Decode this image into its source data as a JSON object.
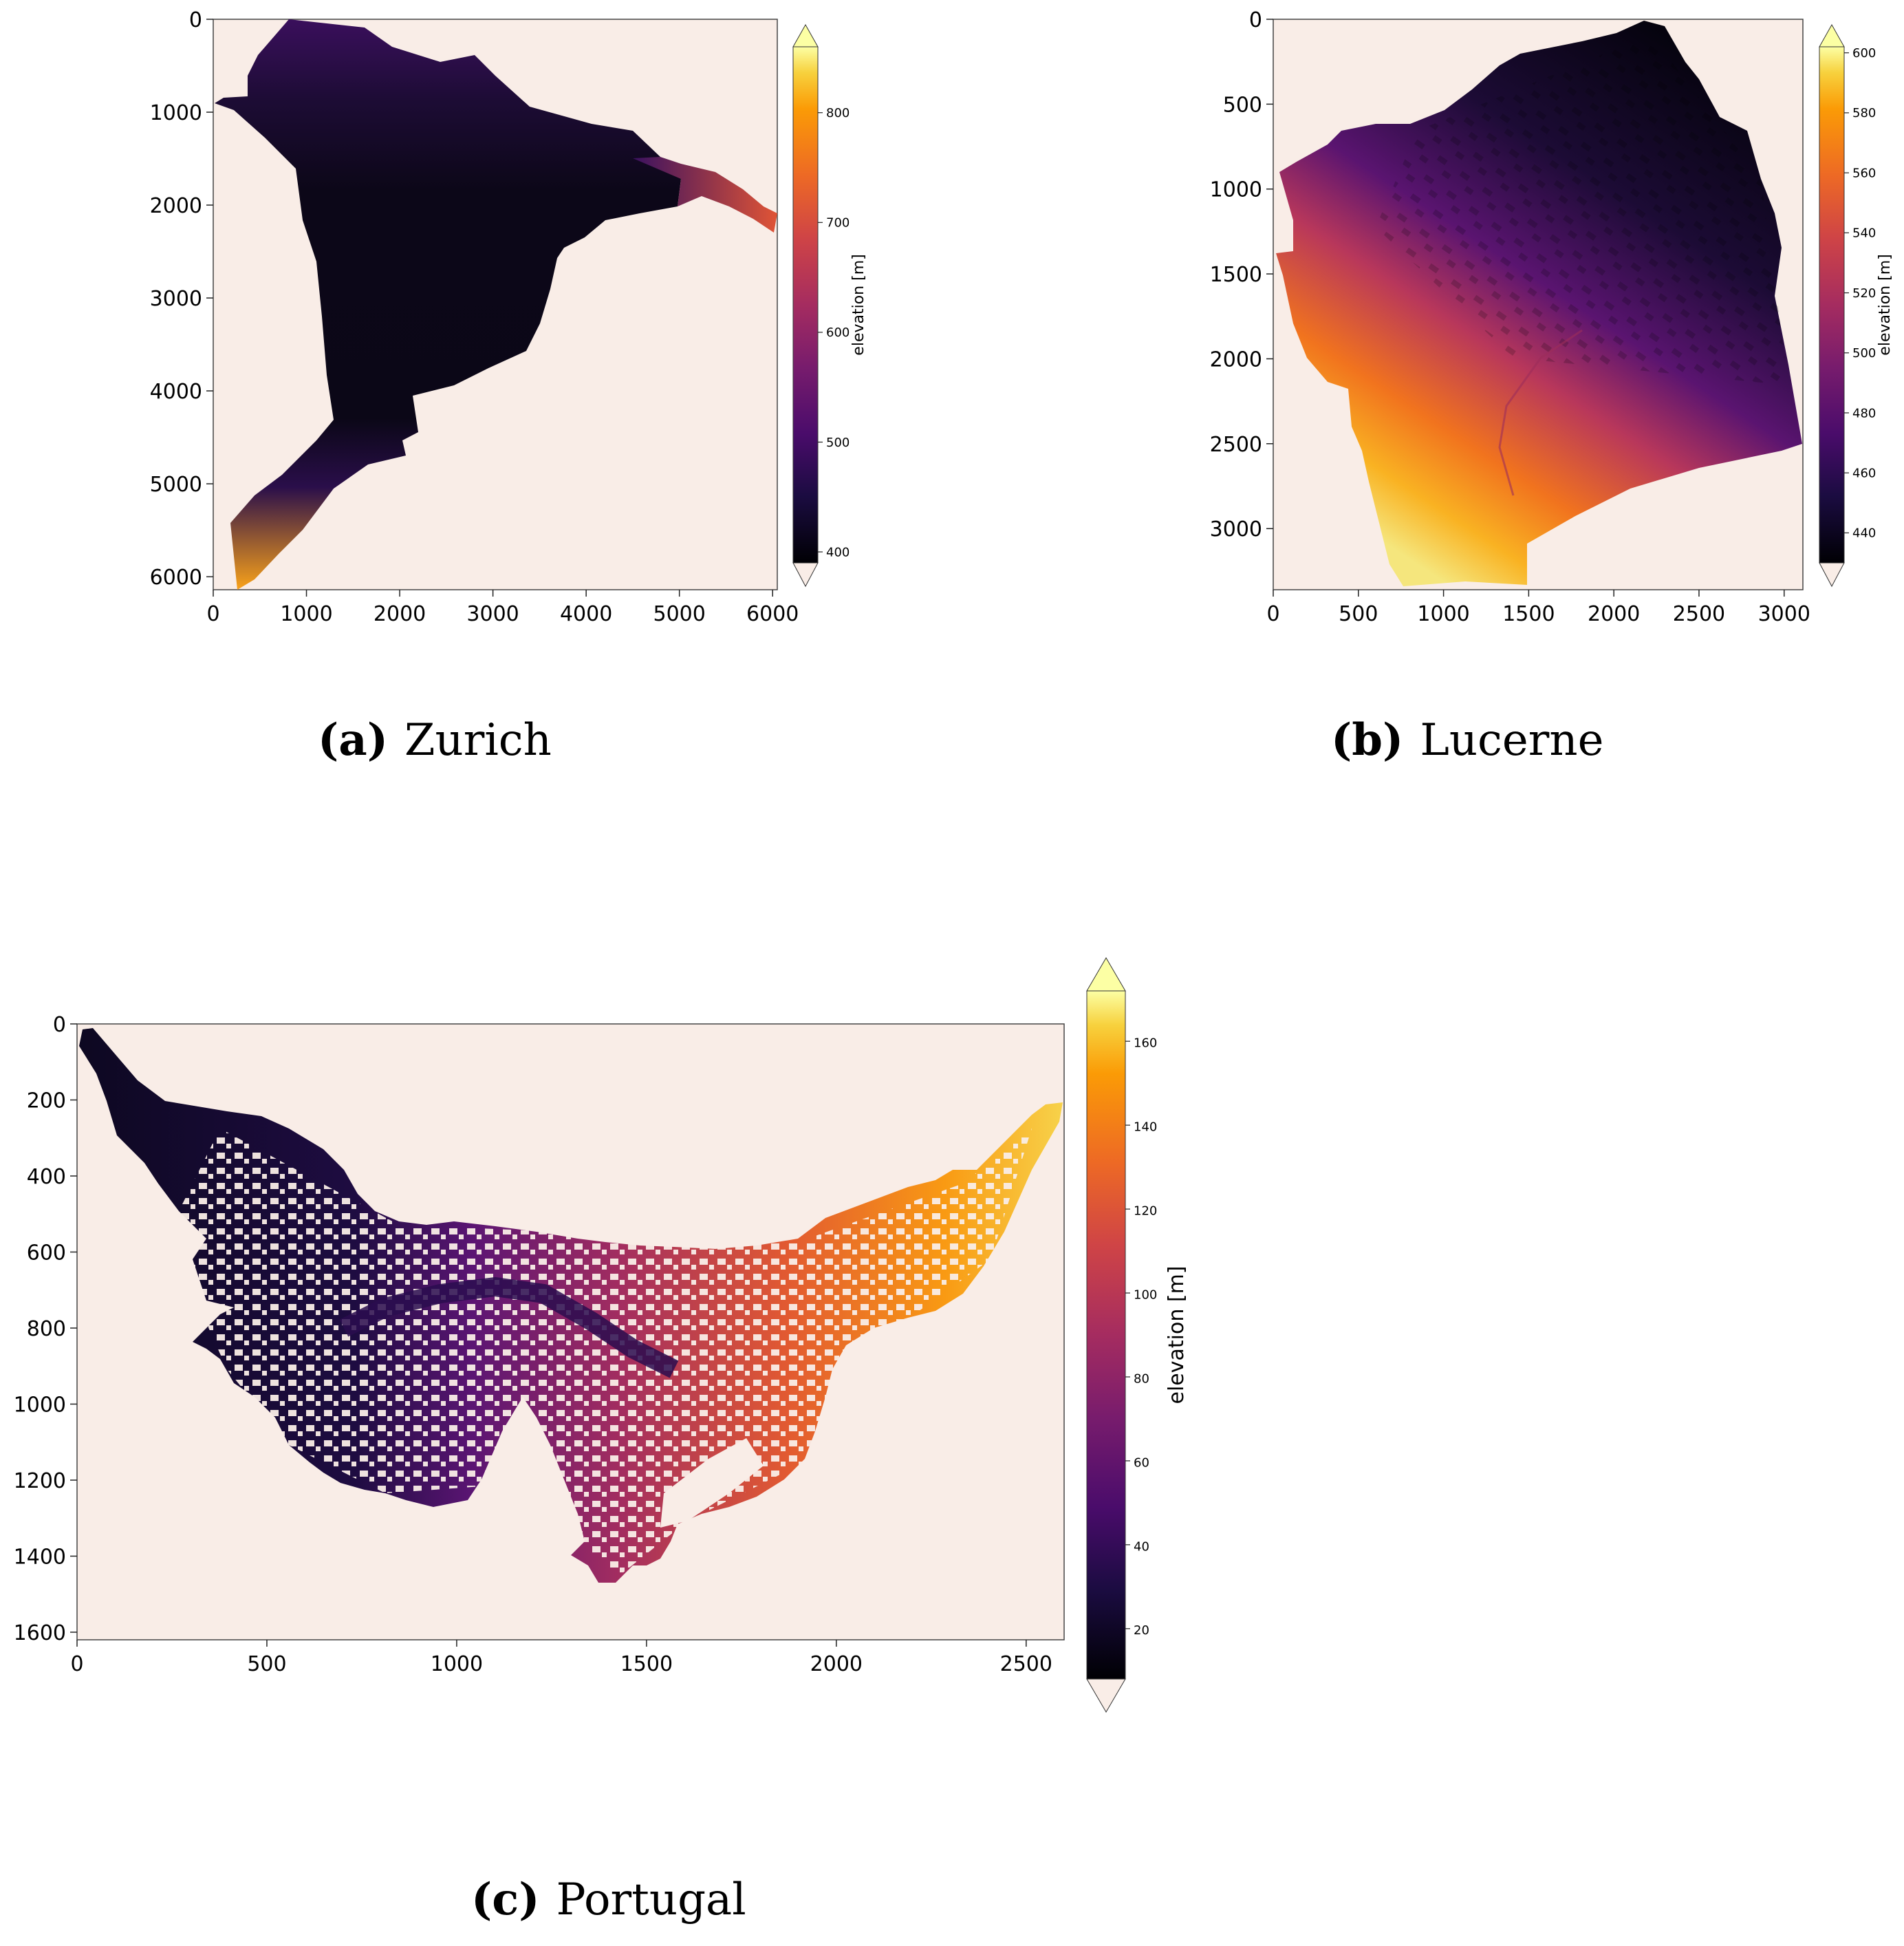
{
  "panels": [
    {
      "id": "zurich",
      "caption_letter": "(a)",
      "caption_name": "Zurich",
      "colorbar_label": "elevation [m]",
      "colorbar_ticks": [
        400,
        500,
        600,
        700,
        800
      ],
      "colorbar_range": [
        390,
        860
      ],
      "x_ticks": [
        0,
        1000,
        2000,
        3000,
        4000,
        5000,
        6000
      ],
      "y_ticks": [
        0,
        1000,
        2000,
        3000,
        4000,
        5000,
        6000
      ],
      "x_range": [
        0,
        6050
      ],
      "y_range": [
        0,
        6140
      ],
      "colormap": "inferno",
      "background_color": "#f9ede7"
    },
    {
      "id": "lucerne",
      "caption_letter": "(b)",
      "caption_name": "Lucerne",
      "colorbar_label": "elevation [m]",
      "colorbar_ticks": [
        440,
        460,
        480,
        500,
        520,
        540,
        560,
        580,
        600
      ],
      "colorbar_range": [
        430,
        602
      ],
      "x_ticks": [
        0,
        500,
        1000,
        1500,
        2000,
        2500,
        3000
      ],
      "y_ticks": [
        0,
        500,
        1000,
        1500,
        2000,
        2500,
        3000
      ],
      "x_range": [
        0,
        3110
      ],
      "y_range": [
        0,
        3360
      ],
      "colormap": "inferno",
      "background_color": "#f9ede7"
    },
    {
      "id": "portugal",
      "caption_letter": "(c)",
      "caption_name": "Portugal",
      "colorbar_label": "elevation [m]",
      "colorbar_ticks": [
        20,
        40,
        60,
        80,
        100,
        120,
        140,
        160
      ],
      "colorbar_range": [
        8,
        172
      ],
      "x_ticks": [
        0,
        500,
        1000,
        1500,
        2000,
        2500
      ],
      "y_ticks": [
        0,
        200,
        400,
        600,
        800,
        1000,
        1200,
        1400,
        1600
      ],
      "x_range": [
        0,
        2600
      ],
      "y_range": [
        0,
        1620
      ],
      "colormap": "inferno",
      "background_color": "#f9ede7"
    }
  ]
}
